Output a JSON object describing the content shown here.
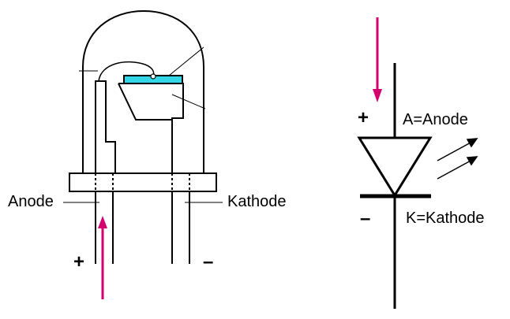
{
  "led_drawing": {
    "left_label": "Anode",
    "right_label": "Kathode",
    "plus_sign": "+",
    "minus_sign": "–"
  },
  "symbol": {
    "anode_label": "A=Anode",
    "cathode_label": "K=Kathode",
    "plus_sign": "+",
    "minus_sign": "–"
  },
  "colors": {
    "arrow": "#d4006e",
    "chip": "#33d6e6",
    "line": "#000000"
  }
}
